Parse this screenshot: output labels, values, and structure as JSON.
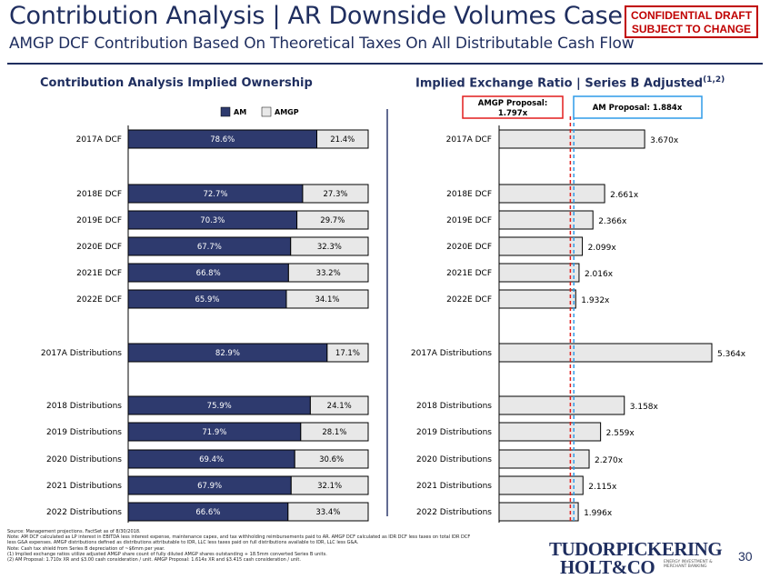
{
  "header": {
    "title": "Contribution Analysis | AR Downside Volumes Case",
    "subtitle": "AMGP DCF Contribution Based On Theoretical Taxes On All Distributable Cash Flow",
    "confidential": [
      "CONFIDENTIAL DRAFT",
      "SUBJECT TO CHANGE"
    ]
  },
  "colors": {
    "navy": "#2e3a6e",
    "title_blue": "#1f2e5f",
    "bar_gray": "#e8e8e8",
    "red": "#e21d1d",
    "blue": "#2f9be8"
  },
  "chart_data": [
    {
      "type": "bar",
      "title": "Contribution Analysis Implied Ownership",
      "stacked": true,
      "orientation": "horizontal",
      "categories": [
        "2017A DCF",
        "2018E DCF",
        "2019E DCF",
        "2020E DCF",
        "2021E DCF",
        "2022E DCF",
        "2017A Distributions",
        "2018 Distributions",
        "2019 Distributions",
        "2020 Distributions",
        "2021 Distributions",
        "2022 Distributions"
      ],
      "series": [
        {
          "name": "AM",
          "values": [
            78.6,
            72.7,
            70.3,
            67.7,
            66.8,
            65.9,
            82.9,
            75.9,
            71.9,
            69.4,
            67.9,
            66.6
          ]
        },
        {
          "name": "AMGP",
          "values": [
            21.4,
            27.3,
            29.7,
            32.3,
            33.2,
            34.1,
            17.1,
            24.1,
            28.1,
            30.6,
            32.1,
            33.4
          ]
        }
      ],
      "value_suffix": "%",
      "xlim": [
        0,
        100
      ],
      "legend": "top"
    },
    {
      "type": "bar",
      "title": "Implied Exchange Ratio | Series B Adjusted",
      "title_superscript": "(1,2)",
      "orientation": "horizontal",
      "categories": [
        "2017A DCF",
        "2018E DCF",
        "2019E DCF",
        "2020E DCF",
        "2021E DCF",
        "2022E DCF",
        "2017A Distributions",
        "2018 Distributions",
        "2019 Distributions",
        "2020 Distributions",
        "2021 Distributions",
        "2022 Distributions"
      ],
      "values": [
        3.67,
        2.661,
        2.366,
        2.099,
        2.016,
        1.932,
        5.364,
        3.158,
        2.559,
        2.27,
        2.115,
        1.996
      ],
      "value_suffix": "x",
      "xlim": [
        0,
        5.5
      ],
      "reference_lines": [
        {
          "label": "AMGP Proposal: 1.797x",
          "value": 1.797,
          "style": "dashed",
          "color": "#e21d1d"
        },
        {
          "label": "AM Proposal: 1.884x",
          "value": 1.884,
          "style": "dashed",
          "color": "#2f9be8"
        }
      ]
    }
  ],
  "footnotes": [
    "Source: Management projections. FactSet as of 8/30/2018.",
    "Note: AM DCF calculated as LP interest in EBITDA less interest expense, maintenance capex, and tax withholding reimbursements paid to AR. AMGP DCF calculated as IDR DCF less taxes on total IDR DCF",
    "less G&A expenses. AMGP distributions defined as distributions attributable to IDR, LLC less taxes paid on full distributions available to IDR, LLC less G&A.",
    "Note: Cash tax shield from Series B depreciation of ~$6mm per year.",
    "(1)      Implied exchange ratios utilize adjusted AMGP share count of fully diluted AMGP shares outstanding + 18.5mm converted Series B units.",
    "(2)      AM Proposal: 1.710x XR and $3.00 cash consideration / unit. AMGP Proposal: 1.614x XR and $3.415 cash consideration / unit."
  ],
  "logo": {
    "line1": "TUDORPICKERING",
    "line2": "HOLT&CO",
    "tagline": "ENERGY INVESTMENT & MERCHANT BANKING"
  },
  "page_number": "30"
}
